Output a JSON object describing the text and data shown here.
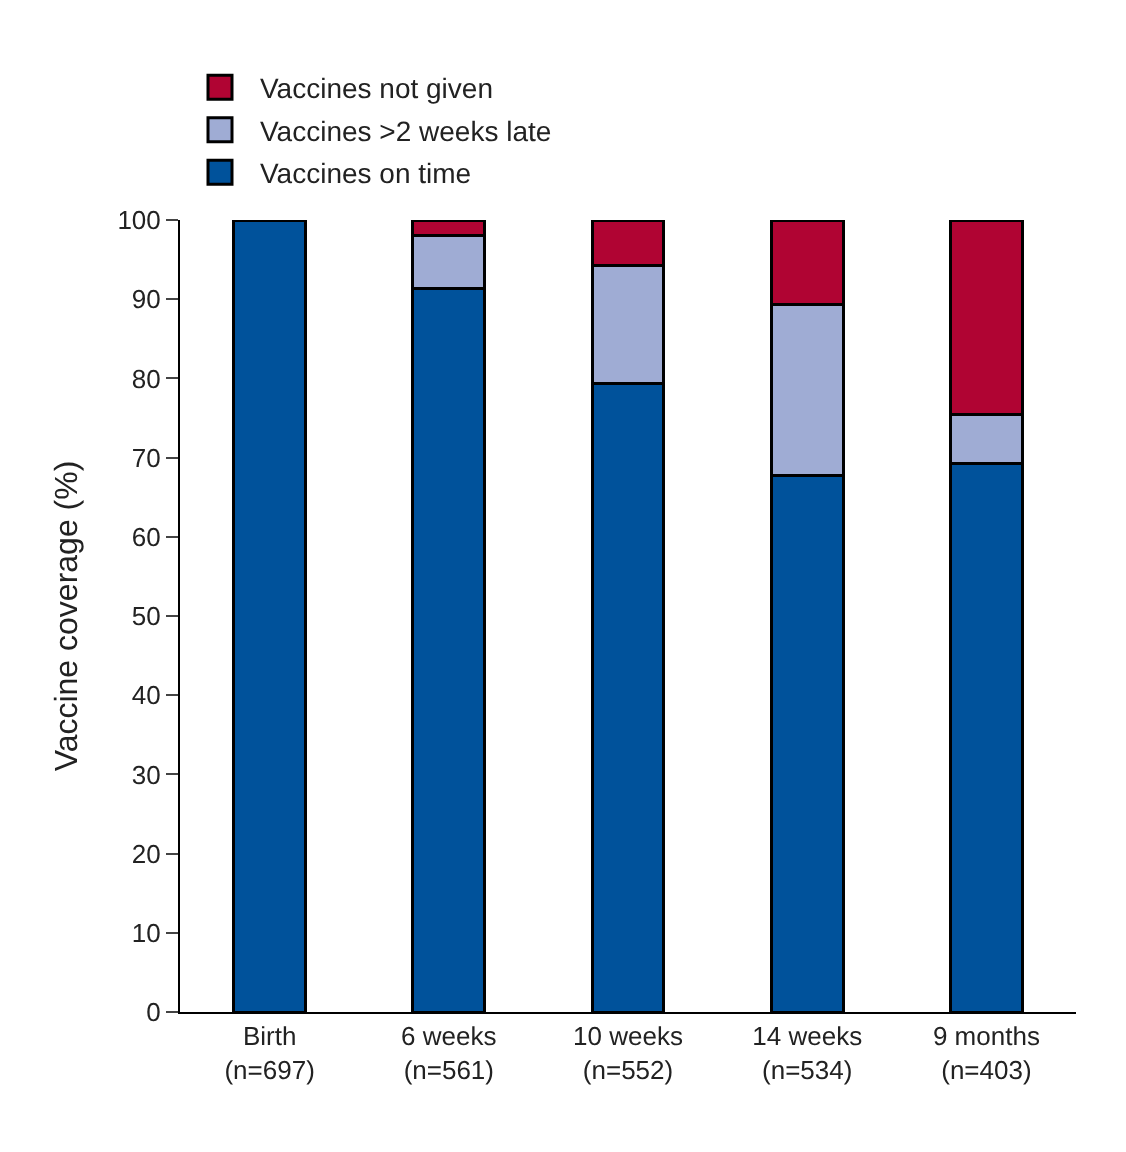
{
  "chart_data": {
    "type": "bar",
    "stacked": true,
    "ylabel": "Vaccine coverage (%)",
    "categories": [
      "Birth\n(n=697)",
      "6 weeks\n(n=561)",
      "10 weeks\n(n=552)",
      "14 weeks\n(n=534)",
      "9 months\n(n=403)"
    ],
    "series": [
      {
        "name": "Vaccines on time",
        "color": "#00529b",
        "values": [
          100,
          91.4,
          79.4,
          67.7,
          69.2
        ]
      },
      {
        "name": "Vaccines >2 weeks late",
        "color": "#9facd4",
        "values": [
          null,
          6.6,
          14.9,
          21.6,
          6.2
        ]
      },
      {
        "name": "Vaccines not given",
        "color": "#b00433",
        "values": [
          null,
          2.0,
          5.7,
          10.7,
          24.6
        ]
      }
    ],
    "ylim": [
      0,
      100
    ],
    "yticks": [
      0,
      10,
      20,
      30,
      40,
      50,
      60,
      70,
      80,
      90,
      100
    ],
    "legend": "top left"
  }
}
